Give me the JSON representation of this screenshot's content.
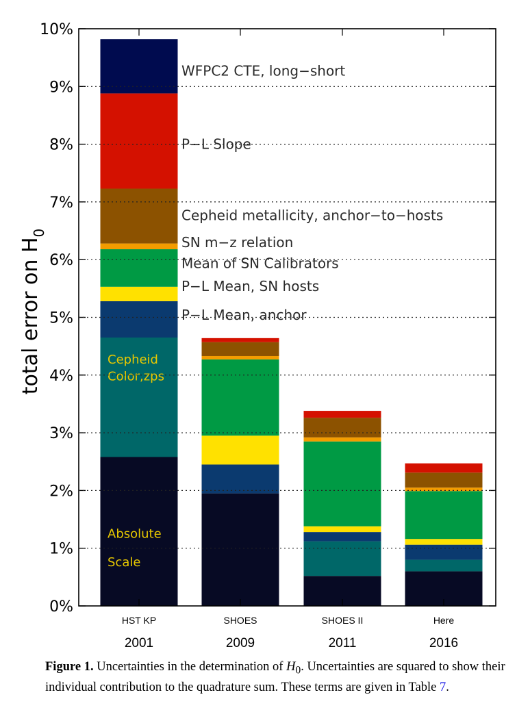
{
  "chart_data": {
    "type": "bar",
    "stacked": true,
    "ylabel": "total error on H",
    "ylabel_subscript": "0",
    "ylim": [
      0,
      10
    ],
    "yticks": [
      "0%",
      "1%",
      "2%",
      "3%",
      "4%",
      "5%",
      "6%",
      "7%",
      "8%",
      "9%",
      "10%"
    ],
    "grid": "dotted horizontal",
    "categories": [
      "HST KP",
      "SHOES",
      "SHOES II",
      "Here"
    ],
    "years": [
      "2001",
      "2009",
      "2011",
      "2016"
    ],
    "series": [
      {
        "name": "Absolute Scale",
        "color": "#070a24",
        "values": [
          2.58,
          1.95,
          0.52,
          0.6
        ]
      },
      {
        "name": "Cepheid Color,zps",
        "color": "#006768",
        "values": [
          2.07,
          0.0,
          0.6,
          0.2
        ]
      },
      {
        "name": "P−L Mean, anchor",
        "color": "#0b3a6f",
        "values": [
          0.63,
          0.5,
          0.16,
          0.26
        ]
      },
      {
        "name": "P−L Mean, SN hosts",
        "color": "#ffe100",
        "values": [
          0.25,
          0.5,
          0.1,
          0.1
        ]
      },
      {
        "name": "Mean of SN Calibrators",
        "color": "#009a44",
        "values": [
          0.65,
          1.32,
          1.47,
          0.83
        ]
      },
      {
        "name": "SN m−z relation",
        "color": "#f39c00",
        "values": [
          0.1,
          0.06,
          0.07,
          0.06
        ]
      },
      {
        "name": "Cepheid metallicity, anchor−to−hosts",
        "color": "#8c5200",
        "values": [
          0.95,
          0.24,
          0.34,
          0.26
        ]
      },
      {
        "name": "P−L Slope",
        "color": "#d41100",
        "values": [
          1.65,
          0.07,
          0.12,
          0.16
        ]
      },
      {
        "name": "WFPC2 CTE, long−short",
        "color": "#000b4f",
        "values": [
          0.94,
          0.0,
          0.0,
          0.0
        ]
      }
    ],
    "annotations": [
      {
        "text": "WFPC2 CTE, long−short",
        "y": 9.27
      },
      {
        "text": "P−L Slope",
        "y": 8.0
      },
      {
        "text": "Cepheid metallicity, anchor−to−hosts",
        "y": 6.77
      },
      {
        "text": "SN m−z relation",
        "y": 6.3
      },
      {
        "text": "Mean of SN Calibrators",
        "y": 5.94
      },
      {
        "text": "P−L Mean, SN hosts",
        "y": 5.54
      },
      {
        "text": "P−L Mean, anchor",
        "y": 5.04
      }
    ],
    "inbar_labels": [
      {
        "line1": "Cepheid",
        "line2": "Color,zps",
        "y1": 4.27,
        "y2": 3.98
      },
      {
        "line1": "Absolute",
        "line2": "Scale",
        "y1": 1.25,
        "y2": 0.76
      }
    ]
  },
  "caption": {
    "label": "Figure 1.",
    "text_a": " Uncertainties in the determination of ",
    "symbol": "H",
    "symbol_sub": "0",
    "text_b": ". Uncertainties are squared to show their individual contribution to the quadrature sum. These terms are given in Table ",
    "table_ref": "7",
    "text_c": "."
  }
}
